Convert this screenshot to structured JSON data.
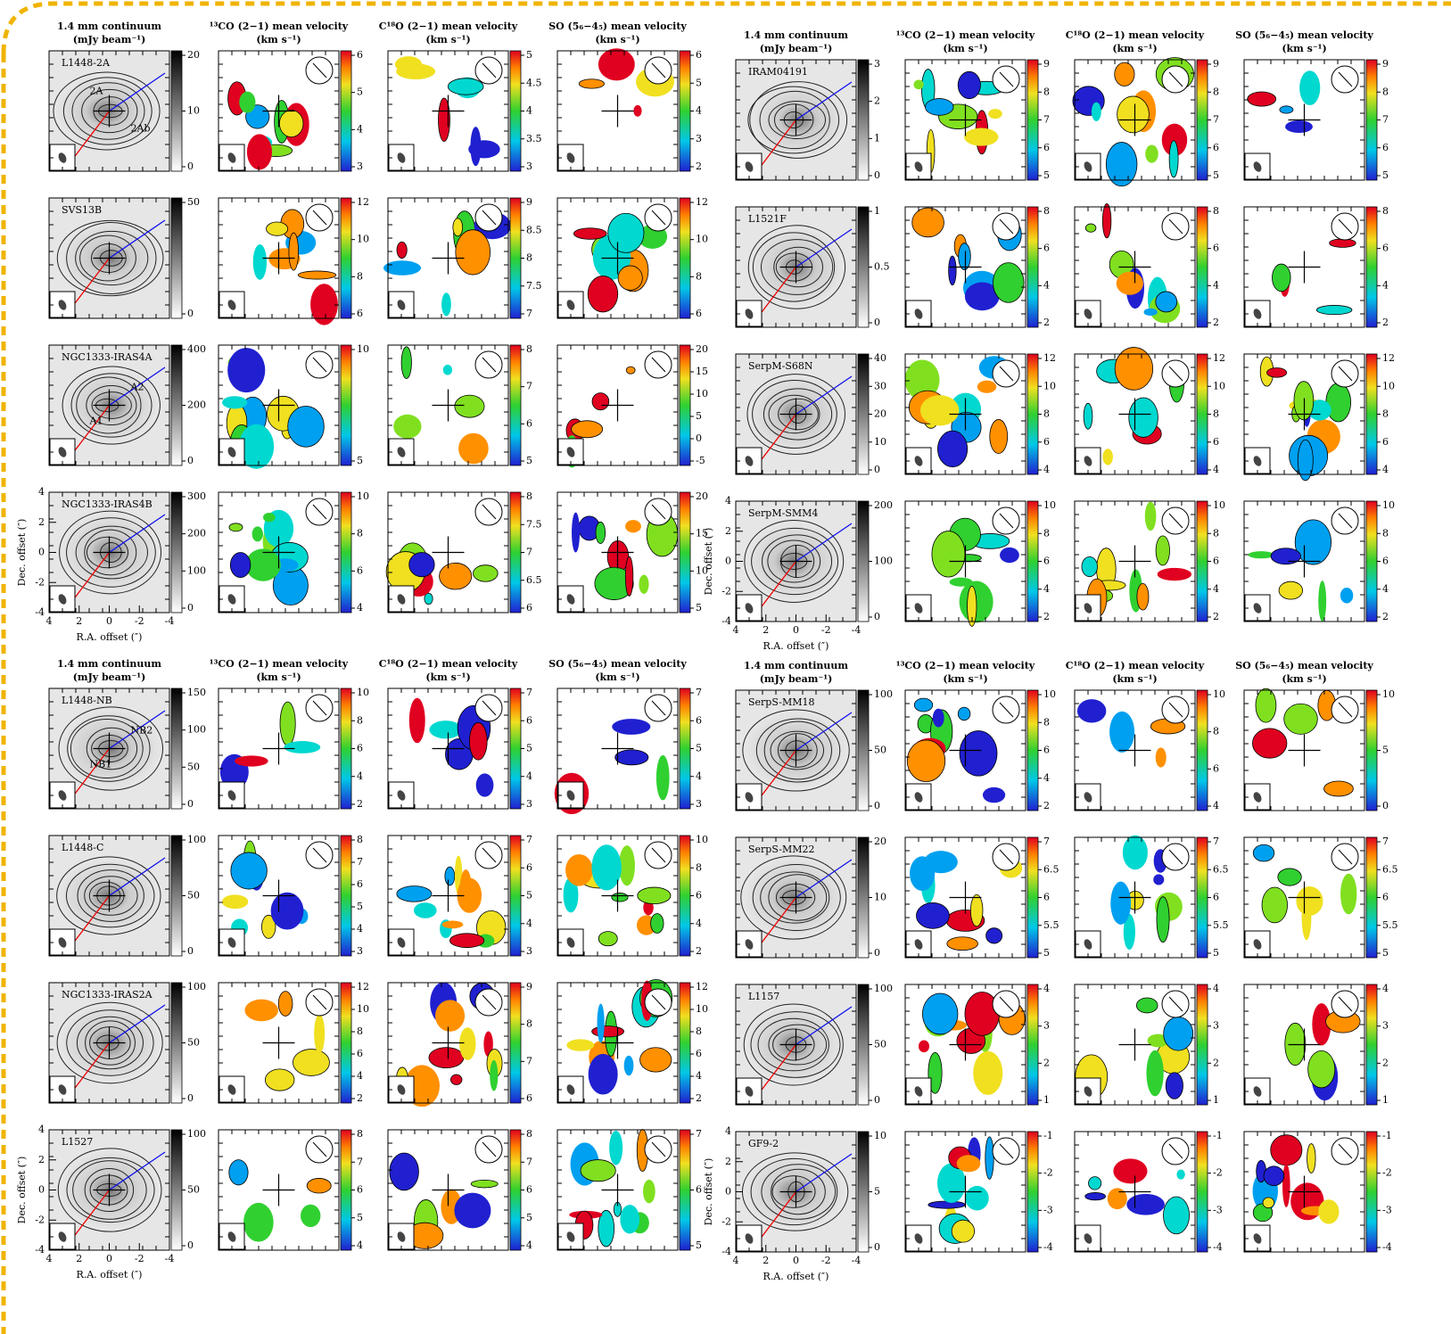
{
  "columns": [
    [
      "1.4 mm continuum",
      "(mJy beam⁻¹)"
    ],
    [
      "¹³CO (2−1) mean velocity",
      "(km s⁻¹)"
    ],
    [
      "C¹⁸O (2−1) mean velocity",
      "(km s⁻¹)"
    ],
    [
      "SO (5₆−4₅) mean velocity",
      "(km s⁻¹)"
    ]
  ],
  "axes": {
    "x_label": "R.A. offset (″)",
    "y_label": "Dec. offset (″)",
    "xticks": [
      4,
      2,
      0,
      -2,
      -4
    ],
    "yticks": [
      -4,
      -2,
      0,
      2,
      4
    ]
  },
  "quadrants": [
    {
      "rows": [
        {
          "source": "L1448-2A",
          "annotations": [
            "2A",
            "2Ab"
          ],
          "colorbars": [
            [
              0,
              10,
              20
            ],
            [
              3,
              4,
              5,
              6
            ],
            [
              3,
              3.5,
              4,
              4.5,
              5
            ],
            [
              2,
              3,
              4,
              5,
              6
            ]
          ]
        },
        {
          "source": "SVS13B",
          "colorbars": [
            [
              0,
              50
            ],
            [
              6,
              8,
              10,
              12
            ],
            [
              7,
              7.5,
              8,
              8.5,
              9
            ],
            [
              6,
              8,
              10,
              12
            ]
          ]
        },
        {
          "source": "NGC1333-IRAS4A",
          "annotations": [
            "A1",
            "A2"
          ],
          "colorbars": [
            [
              0,
              200,
              400
            ],
            [
              5,
              10
            ],
            [
              5,
              6,
              7,
              8
            ],
            [
              -5,
              0,
              5,
              10,
              15,
              20
            ]
          ]
        },
        {
          "source": "NGC1333-IRAS4B",
          "colorbars": [
            [
              0,
              100,
              200,
              300
            ],
            [
              4,
              6,
              8,
              10
            ],
            [
              6,
              6.5,
              7,
              7.5,
              8
            ],
            [
              5,
              10,
              15,
              20
            ]
          ]
        }
      ]
    },
    {
      "rows": [
        {
          "source": "IRAM04191",
          "colorbars": [
            [
              0,
              1,
              2,
              3
            ],
            [
              5,
              6,
              7,
              8,
              9
            ],
            [
              5,
              6,
              7,
              8,
              9
            ],
            [
              5,
              6,
              7,
              8,
              9
            ]
          ]
        },
        {
          "source": "L1521F",
          "colorbars": [
            [
              0,
              0.5,
              1
            ],
            [
              2,
              4,
              6,
              8
            ],
            [
              2,
              4,
              6,
              8
            ],
            [
              2,
              4,
              6,
              8
            ]
          ]
        },
        {
          "source": "SerpM-S68N",
          "colorbars": [
            [
              0,
              10,
              20,
              30,
              40
            ],
            [
              4,
              6,
              8,
              10,
              12
            ],
            [
              4,
              6,
              8,
              10,
              12
            ],
            [
              4,
              6,
              8,
              10,
              12
            ]
          ]
        },
        {
          "source": "SerpM-SMM4",
          "colorbars": [
            [
              0,
              100,
              200
            ],
            [
              2,
              4,
              6,
              8,
              10
            ],
            [
              2,
              4,
              6,
              8,
              10
            ],
            [
              2,
              4,
              6,
              8,
              10
            ]
          ]
        }
      ]
    },
    {
      "rows": [
        {
          "source": "L1448-NB",
          "annotations": [
            "NB1",
            "NB2"
          ],
          "colorbars": [
            [
              0,
              50,
              100,
              150
            ],
            [
              2,
              4,
              6,
              8,
              10
            ],
            [
              3,
              4,
              5,
              6,
              7
            ],
            [
              3,
              4,
              5,
              6,
              7
            ]
          ]
        },
        {
          "source": "L1448-C",
          "colorbars": [
            [
              0,
              50,
              100
            ],
            [
              3,
              4,
              5,
              6,
              7,
              8
            ],
            [
              3,
              4,
              5,
              6,
              7
            ],
            [
              2,
              4,
              6,
              8,
              10
            ]
          ]
        },
        {
          "source": "NGC1333-IRAS2A",
          "colorbars": [
            [
              0,
              50,
              100
            ],
            [
              2,
              4,
              6,
              8,
              10,
              12
            ],
            [
              6,
              7,
              8,
              9
            ],
            [
              2,
              4,
              6,
              8,
              10,
              12
            ]
          ]
        },
        {
          "source": "L1527",
          "colorbars": [
            [
              0,
              50,
              100
            ],
            [
              4,
              5,
              6,
              7,
              8
            ],
            [
              4,
              5,
              6,
              7,
              8
            ],
            [
              5,
              6,
              7
            ]
          ]
        }
      ]
    },
    {
      "rows": [
        {
          "source": "SerpS-MM18",
          "colorbars": [
            [
              0,
              50,
              100
            ],
            [
              2,
              4,
              6,
              8,
              10
            ],
            [
              4,
              6,
              8,
              10
            ],
            [
              0,
              5,
              10
            ]
          ]
        },
        {
          "source": "SerpS-MM22",
          "colorbars": [
            [
              0,
              10,
              20
            ],
            [
              5,
              5.5,
              6,
              6.5,
              7
            ],
            [
              5,
              5.5,
              6,
              6.5,
              7
            ],
            [
              5,
              5.5,
              6,
              6.5,
              7
            ]
          ]
        },
        {
          "source": "L1157",
          "colorbars": [
            [
              0,
              50,
              100
            ],
            [
              1,
              2,
              3,
              4
            ],
            [
              1,
              2,
              3,
              4
            ],
            [
              1,
              2,
              3,
              4
            ]
          ]
        },
        {
          "source": "GF9-2",
          "colorbars": [
            [
              0,
              5,
              10
            ],
            [
              -4,
              -3,
              -2,
              -1
            ],
            [
              -4,
              -3,
              -2,
              -1
            ],
            [
              -4,
              -3,
              -2,
              -1
            ]
          ]
        }
      ]
    }
  ]
}
